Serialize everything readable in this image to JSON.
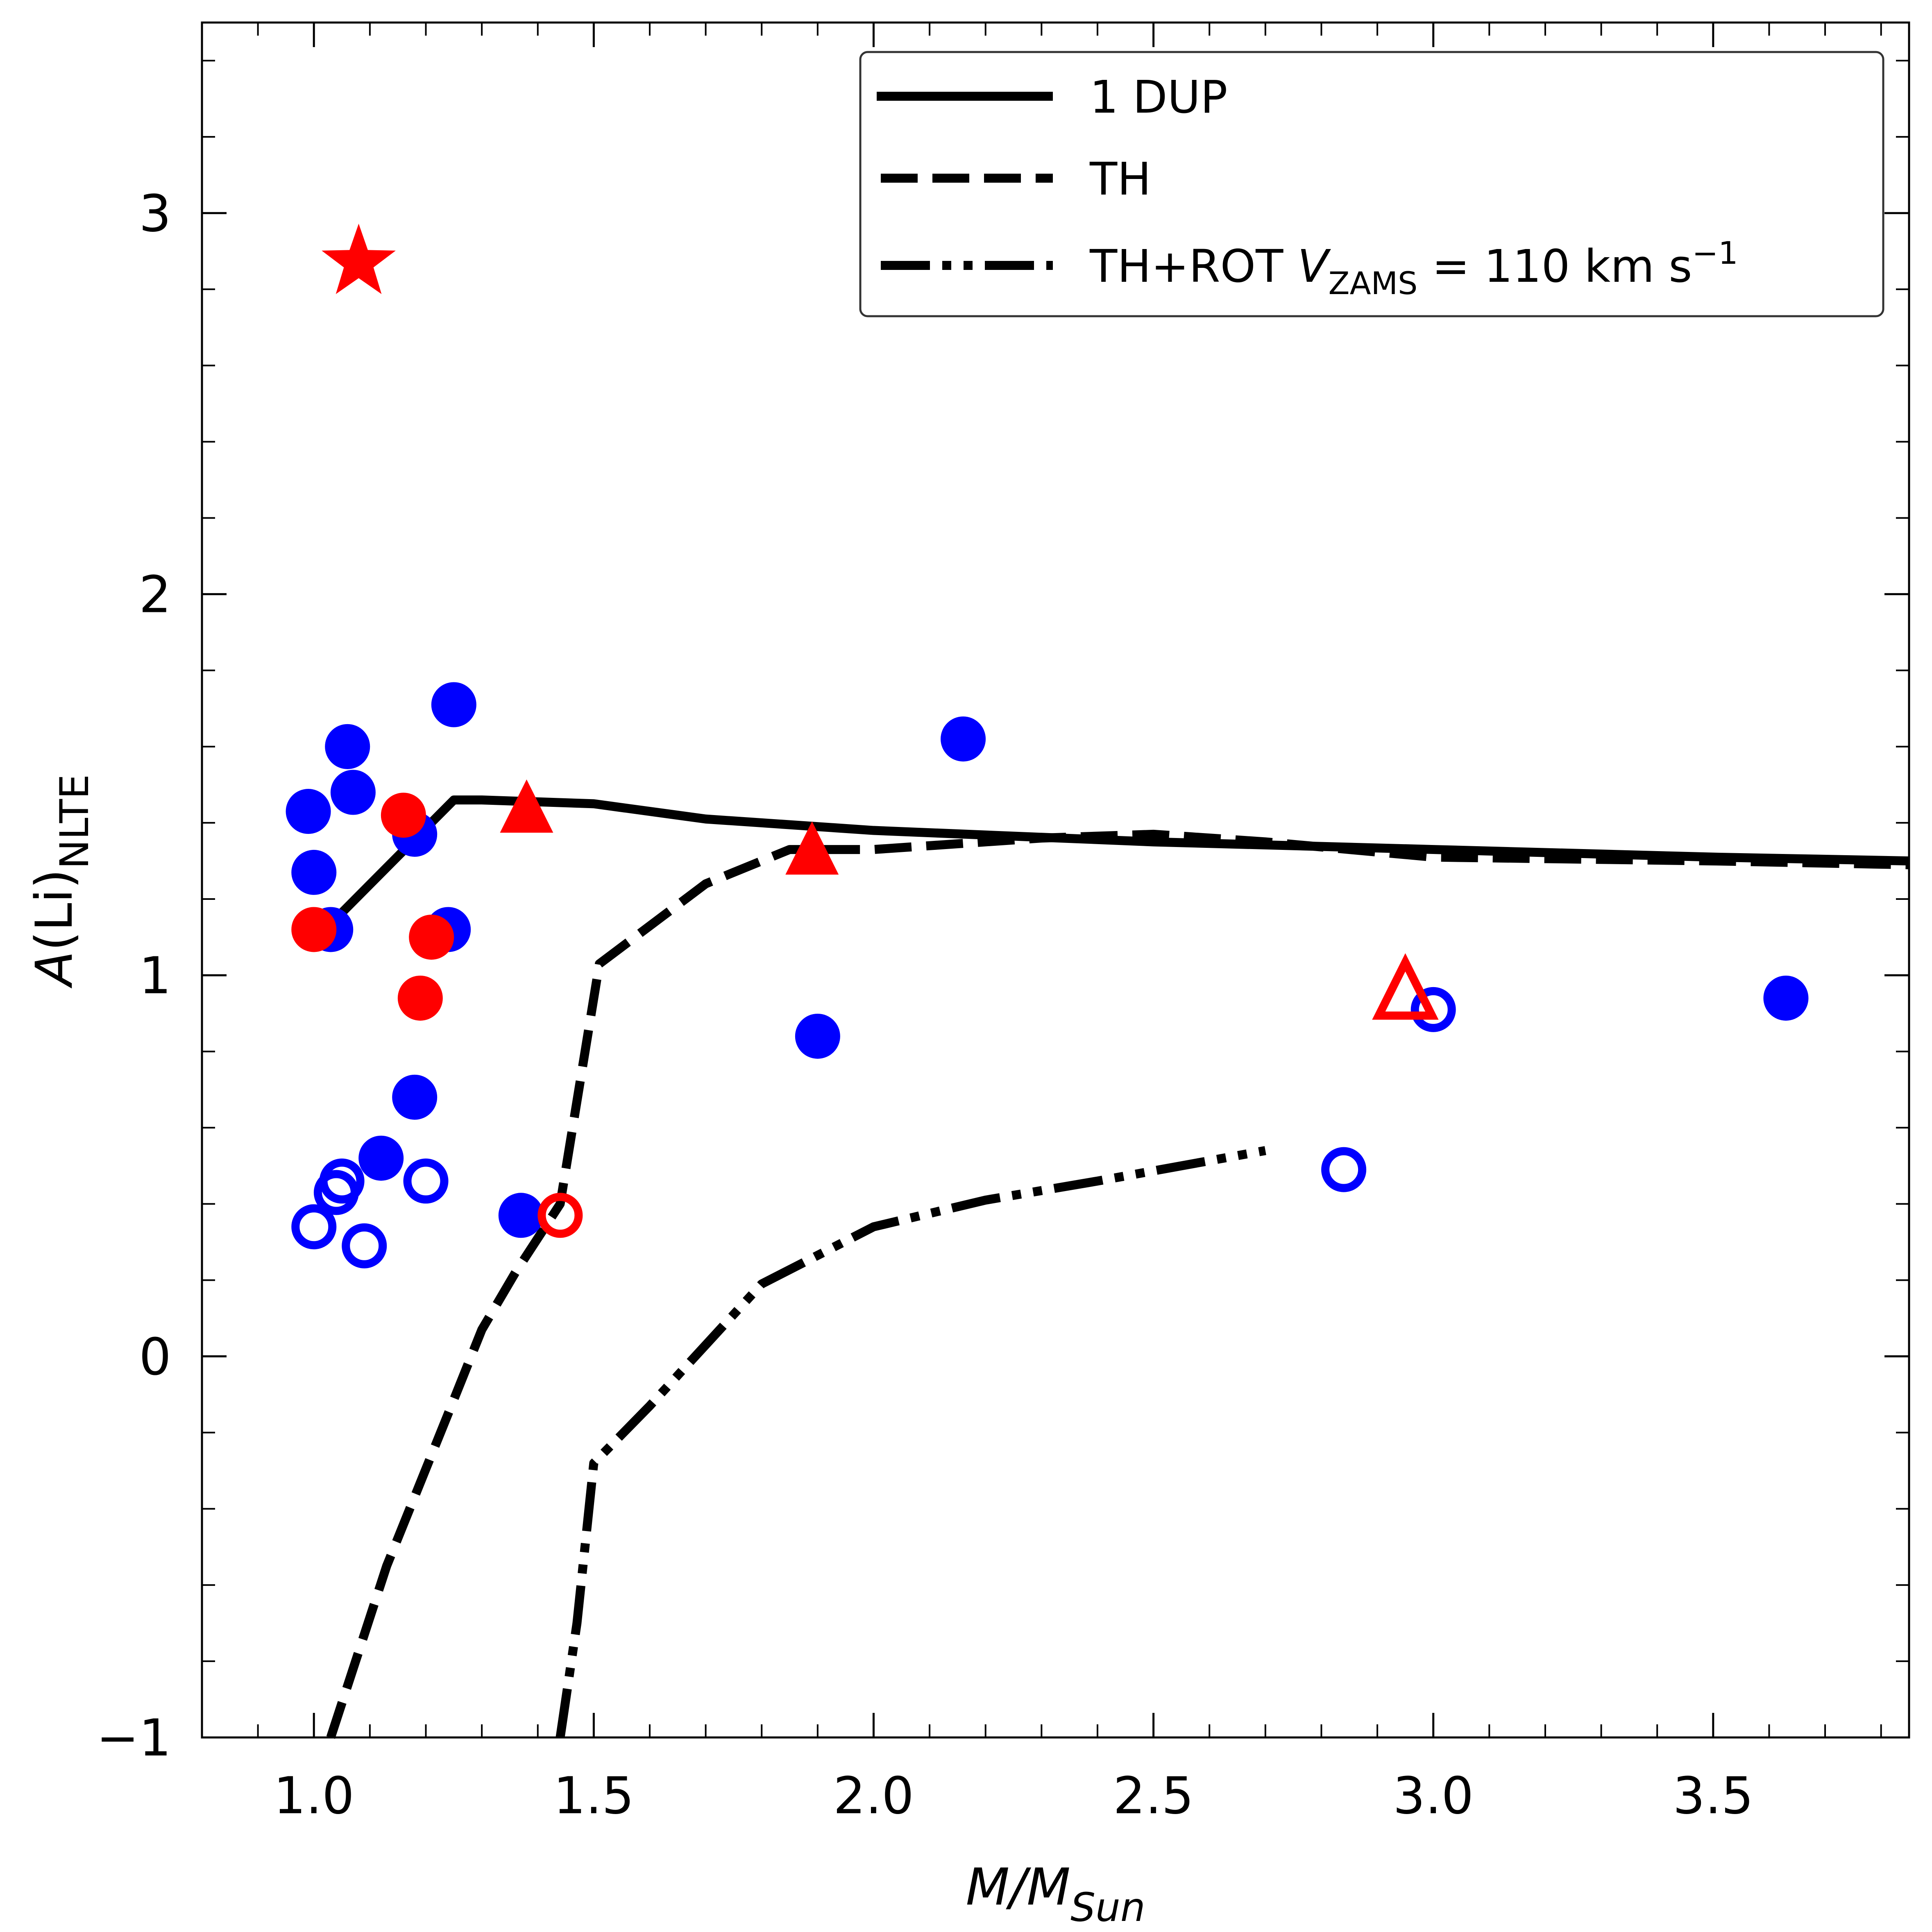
{
  "chart_data": {
    "type": "scatter",
    "title": "",
    "xlabel": "M/M_Sun",
    "ylabel": "A(Li)_NLTE",
    "xlim": [
      0.8,
      3.85
    ],
    "ylim": [
      -1.0,
      3.5
    ],
    "x_ticks": [
      1.0,
      1.5,
      2.0,
      2.5,
      3.0,
      3.5
    ],
    "x_tick_labels": [
      "1.0",
      "1.5",
      "2.0",
      "2.5",
      "3.0",
      "3.5"
    ],
    "y_ticks": [
      -1,
      0,
      1,
      2,
      3
    ],
    "y_tick_labels": [
      "−1",
      "0",
      "1",
      "2",
      "3"
    ],
    "legend": {
      "position": "top-right",
      "entries": [
        {
          "label": "1 DUP",
          "style": "solid"
        },
        {
          "label": "TH",
          "style": "dashed"
        },
        {
          "label_main": "TH+ROT ",
          "label_var": "V",
          "label_sub": "ZAMS",
          "label_eq": " = 110 km s",
          "label_sup": "−1",
          "style": "dashdotdot"
        }
      ]
    },
    "lines": [
      {
        "name": "1 DUP",
        "style": "solid",
        "x": [
          1.02,
          1.25,
          1.3,
          1.5,
          1.7,
          2.0,
          2.5,
          3.0,
          3.5,
          3.85
        ],
        "y": [
          1.12,
          1.46,
          1.46,
          1.45,
          1.41,
          1.38,
          1.35,
          1.33,
          1.31,
          1.3
        ]
      },
      {
        "name": "TH",
        "style": "dashed",
        "x": [
          1.03,
          1.13,
          1.24,
          1.3,
          1.36,
          1.44,
          1.51,
          1.7,
          1.85,
          2.0,
          2.3,
          2.5,
          2.7,
          3.0,
          3.5,
          3.85
        ],
        "y": [
          -1.0,
          -0.55,
          -0.15,
          0.07,
          0.22,
          0.4,
          1.03,
          1.24,
          1.33,
          1.33,
          1.36,
          1.37,
          1.35,
          1.31,
          1.3,
          1.29
        ]
      },
      {
        "name": "TH+ROT",
        "style": "dashdotdot",
        "x": [
          1.44,
          1.47,
          1.5,
          1.6,
          1.7,
          1.8,
          2.0,
          2.2,
          2.4,
          2.7
        ],
        "y": [
          -1.0,
          -0.7,
          -0.28,
          -0.13,
          0.03,
          0.19,
          0.34,
          0.41,
          0.46,
          0.54
        ]
      }
    ],
    "series": [
      {
        "name": "blue filled circles",
        "color": "#0000ff",
        "marker": "circle",
        "filled": true,
        "x": [
          0.99,
          1.0,
          1.03,
          1.06,
          1.07,
          1.18,
          1.24,
          1.25,
          1.12,
          1.18,
          1.37,
          1.9,
          2.16,
          3.63
        ],
        "y": [
          1.43,
          1.27,
          1.12,
          1.6,
          1.48,
          1.37,
          1.12,
          1.71,
          0.52,
          0.68,
          0.37,
          0.84,
          1.62,
          0.94
        ]
      },
      {
        "name": "blue open circles",
        "color": "#0000ff",
        "marker": "circle",
        "filled": false,
        "x": [
          1.05,
          1.04,
          1.0,
          1.09,
          1.2,
          2.84,
          3.0
        ],
        "y": [
          0.46,
          0.43,
          0.34,
          0.29,
          0.46,
          0.49,
          0.91
        ]
      },
      {
        "name": "red filled circles",
        "color": "#ff0000",
        "marker": "circle",
        "filled": true,
        "x": [
          1.16,
          1.0,
          1.21,
          1.19
        ],
        "y": [
          1.42,
          1.12,
          1.1,
          0.94
        ]
      },
      {
        "name": "red open circle",
        "color": "#ff0000",
        "marker": "circle",
        "filled": false,
        "x": [
          1.44
        ],
        "y": [
          0.37
        ]
      },
      {
        "name": "red filled triangles",
        "color": "#ff0000",
        "marker": "triangle",
        "filled": true,
        "x": [
          1.38,
          1.89
        ],
        "y": [
          1.43,
          1.32
        ]
      },
      {
        "name": "red open triangle",
        "color": "#ff0000",
        "marker": "triangle",
        "filled": false,
        "x": [
          2.95
        ],
        "y": [
          0.95
        ]
      },
      {
        "name": "red star",
        "color": "#ff0000",
        "marker": "star",
        "filled": true,
        "x": [
          1.08
        ],
        "y": [
          2.87
        ]
      }
    ]
  }
}
